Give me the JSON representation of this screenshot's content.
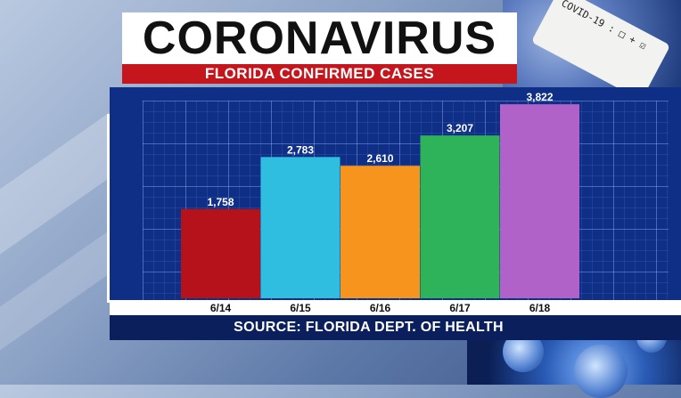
{
  "header": {
    "title": "CORONAVIRUS",
    "subtitle": "FLORIDA CONFIRMED CASES"
  },
  "background": {
    "tube_label": "COVID-19 : □ + ☑"
  },
  "chart_data": {
    "type": "bar",
    "categories": [
      "6/14",
      "6/15",
      "6/16",
      "6/17",
      "6/18"
    ],
    "values": [
      1758,
      2783,
      2610,
      3207,
      3822
    ],
    "value_labels": [
      "1,758",
      "2,783",
      "2,610",
      "3,207",
      "3,822"
    ],
    "colors": [
      "#b5121b",
      "#2fbde0",
      "#f7941d",
      "#2fb35a",
      "#b062c9"
    ],
    "title": "",
    "xlabel": "",
    "ylabel": "",
    "ylim": [
      0,
      4000
    ],
    "grid": true,
    "source": "SOURCE: FLORIDA DEPT. OF HEALTH"
  }
}
